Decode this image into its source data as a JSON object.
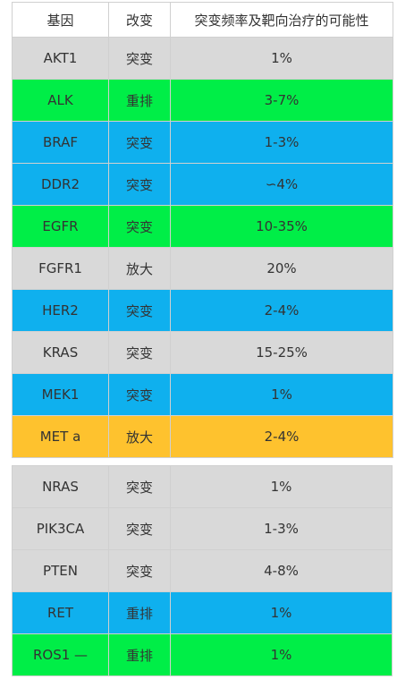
{
  "header": {
    "gene": "基因",
    "change": "改变",
    "freq": "突变频率及靶向治疗的可能性"
  },
  "colors": {
    "gray": "#d9d9d9",
    "green": "#00ee47",
    "blue": "#0fb0ee",
    "orange": "#fec22e"
  },
  "table_top": [
    {
      "gene": "AKT1",
      "change": "突变",
      "freq": "1%",
      "color": "gray"
    },
    {
      "gene": "ALK",
      "change": "重排",
      "freq": "3-7%",
      "color": "green"
    },
    {
      "gene": "BRAF",
      "change": "突变",
      "freq": "1-3%",
      "color": "blue"
    },
    {
      "gene": "DDR2",
      "change": "突变",
      "freq": "∽4%",
      "color": "blue"
    },
    {
      "gene": "EGFR",
      "change": "突变",
      "freq": "10-35%",
      "color": "green"
    },
    {
      "gene": "FGFR1",
      "change": "放大",
      "freq": "20%",
      "color": "gray"
    },
    {
      "gene": "HER2",
      "change": "突变",
      "freq": "2-4%",
      "color": "blue"
    },
    {
      "gene": "KRAS",
      "change": "突变",
      "freq": "15-25%",
      "color": "gray"
    },
    {
      "gene": "MEK1",
      "change": "突变",
      "freq": "1%",
      "color": "blue"
    },
    {
      "gene": "MET a",
      "change": "放大",
      "freq": "2-4%",
      "color": "orange"
    }
  ],
  "table_bottom": [
    {
      "gene": "NRAS",
      "change": "突变",
      "freq": "1%",
      "color": "gray"
    },
    {
      "gene": "PIK3CA",
      "change": "突变",
      "freq": "1-3%",
      "color": "gray"
    },
    {
      "gene": "PTEN",
      "change": "突变",
      "freq": "4-8%",
      "color": "gray"
    },
    {
      "gene": "RET",
      "change": "重排",
      "freq": "1%",
      "color": "blue"
    },
    {
      "gene": "ROS1 —",
      "change": "重排",
      "freq": "1%",
      "color": "green"
    }
  ]
}
